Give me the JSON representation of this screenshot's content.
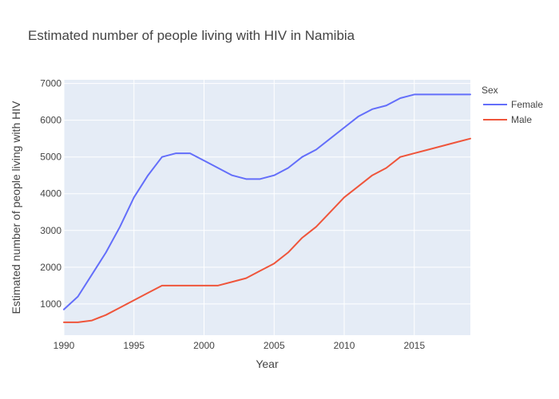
{
  "chart_data": {
    "type": "line",
    "title": "Estimated number of people living with HIV in Namibia",
    "xlabel": "Year",
    "ylabel": "Estimated number of people living with HIV",
    "legend_title": "Sex",
    "legend_position": "right",
    "grid": true,
    "xlim": [
      1990,
      2019
    ],
    "ylim": [
      150,
      7100
    ],
    "xticks": [
      1990,
      1995,
      2000,
      2005,
      2010,
      2015
    ],
    "yticks": [
      1000,
      2000,
      3000,
      4000,
      5000,
      6000,
      7000
    ],
    "x": [
      1990,
      1991,
      1992,
      1993,
      1994,
      1995,
      1996,
      1997,
      1998,
      1999,
      2000,
      2001,
      2002,
      2003,
      2004,
      2005,
      2006,
      2007,
      2008,
      2009,
      2010,
      2011,
      2012,
      2013,
      2014,
      2015,
      2016,
      2017,
      2018,
      2019
    ],
    "series": [
      {
        "name": "Female",
        "color": "#636efa",
        "values": [
          850,
          1200,
          1800,
          2400,
          3100,
          3900,
          4500,
          5000,
          5100,
          5100,
          4900,
          4700,
          4500,
          4400,
          4400,
          4500,
          4700,
          5000,
          5200,
          5500,
          5800,
          6100,
          6300,
          6400,
          6600,
          6700,
          6700,
          6700,
          6700,
          6700
        ]
      },
      {
        "name": "Male",
        "color": "#ef553b",
        "values": [
          500,
          500,
          550,
          700,
          900,
          1100,
          1300,
          1500,
          1500,
          1500,
          1500,
          1500,
          1600,
          1700,
          1900,
          2100,
          2400,
          2800,
          3100,
          3500,
          3900,
          4200,
          4500,
          4700,
          5000,
          5100,
          5200,
          5300,
          5400,
          5500
        ]
      }
    ]
  }
}
